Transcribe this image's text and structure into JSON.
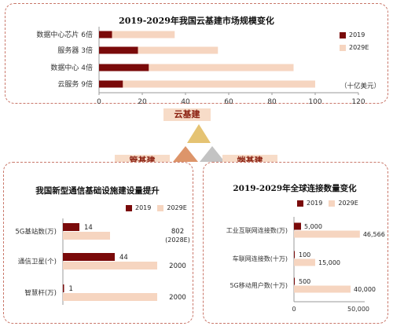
{
  "colors": {
    "dark": "#7a0a0a",
    "light": "#f6d5c0",
    "accent": "#8a1f0f",
    "panel_border": "#c9776a"
  },
  "tags": {
    "cloud": "云基建",
    "pipe": "管基建",
    "edge": "端基建"
  },
  "chart_data": [
    {
      "type": "bar",
      "title": "2019-2029年我国云基建市场规模变化",
      "unit_note": "（十亿美元）",
      "categories": [
        "数据中心芯片",
        "服务器",
        "数据中心",
        "云服务"
      ],
      "multipliers": [
        "6倍",
        "3倍",
        "4倍",
        "9倍"
      ],
      "series": [
        {
          "name": "2019",
          "values": [
            6,
            18,
            23,
            11
          ]
        },
        {
          "name": "2029E",
          "values": [
            35,
            55,
            90,
            100
          ]
        }
      ],
      "xlim": [
        0,
        120
      ],
      "xticks": [
        "0",
        "20",
        "40",
        "60",
        "80",
        "100",
        "120"
      ],
      "legend_position": "top-right",
      "orientation": "horizontal"
    },
    {
      "type": "bar",
      "title": "我国新型通信基础设施建设量提升",
      "categories": [
        "5G基站数(万)",
        "通信卫星(个)",
        "智慧杆(万)"
      ],
      "series": [
        {
          "name": "2019",
          "values": [
            14,
            44,
            1
          ]
        },
        {
          "name": "2029E",
          "values": [
            802,
            2000,
            2000
          ]
        }
      ],
      "labels_2019": [
        "14",
        "44",
        "1"
      ],
      "labels_2029E": [
        "802\n(2028E)",
        "2000",
        "2000"
      ],
      "legend_position": "top-right",
      "orientation": "horizontal"
    },
    {
      "type": "bar",
      "title": "2019-2029年全球连接数量变化",
      "categories": [
        "工业互联网连接数(万)",
        "车联网连接数(十万)",
        "5G移动用户数(十万)"
      ],
      "series": [
        {
          "name": "2019",
          "values": [
            5000,
            100,
            500
          ]
        },
        {
          "name": "2029E",
          "values": [
            46566,
            15000,
            40000
          ]
        }
      ],
      "labels_2019": [
        "5,000",
        "100",
        "500"
      ],
      "labels_2029E": [
        "46,566",
        "15,000",
        "40,000"
      ],
      "xlim": [
        0,
        50000
      ],
      "xticks": [
        "0",
        "50,000"
      ],
      "legend_position": "top-right",
      "orientation": "horizontal"
    }
  ]
}
